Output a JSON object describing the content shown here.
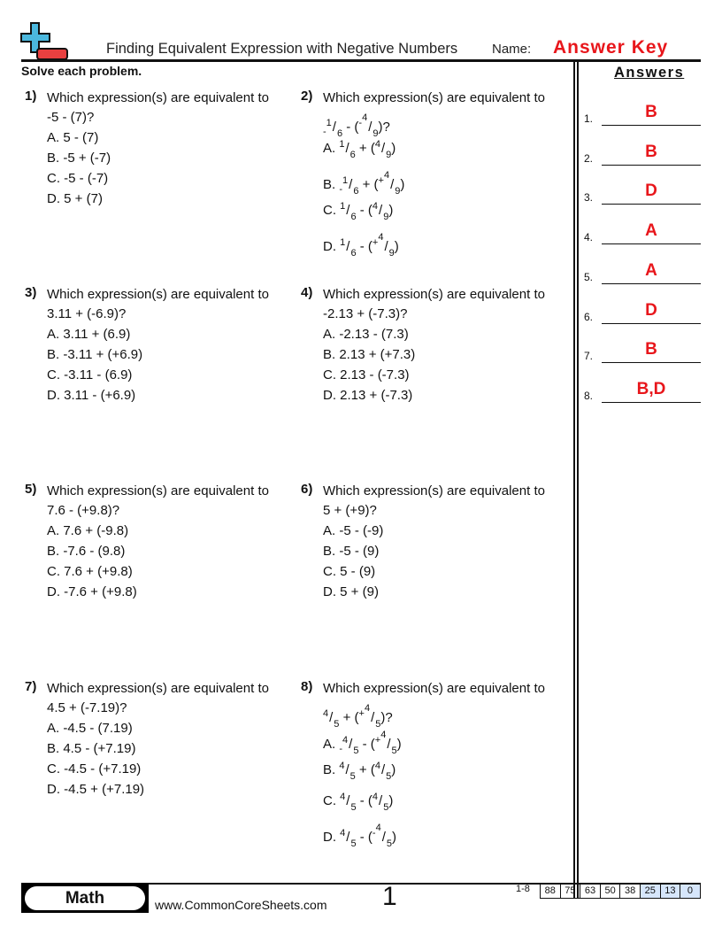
{
  "header": {
    "title": "Finding Equivalent Expression with Negative Numbers",
    "name_label": "Name:",
    "name_value": "Answer Key",
    "instructions": "Solve each problem.",
    "logo_colors": {
      "plus": "#4bb8de",
      "minus": "#e84040"
    }
  },
  "answers": {
    "title": "Answers",
    "items": [
      {
        "num": "1.",
        "value": "B"
      },
      {
        "num": "2.",
        "value": "B"
      },
      {
        "num": "3.",
        "value": "D"
      },
      {
        "num": "4.",
        "value": "A"
      },
      {
        "num": "5.",
        "value": "A"
      },
      {
        "num": "6.",
        "value": "D"
      },
      {
        "num": "7.",
        "value": "B"
      },
      {
        "num": "8.",
        "value": "B,D"
      }
    ],
    "color": "#e8161b"
  },
  "problems": [
    {
      "num": "1)",
      "prompt": "Which expression(s) are equivalent to",
      "expr": [
        {
          "t": "-5 - (7)?"
        }
      ],
      "options": [
        [
          {
            "t": "A. 5 - (7)"
          }
        ],
        [
          {
            "t": "B. -5 + (-7)"
          }
        ],
        [
          {
            "t": "C. -5 - (-7)"
          }
        ],
        [
          {
            "t": "D. 5 + (7)"
          }
        ]
      ]
    },
    {
      "num": "2)",
      "prompt": "Which expression(s) are equivalent to",
      "expr": [
        {
          "s": "-",
          "n": "1",
          "d": "6",
          "low": true
        },
        {
          "t": " - ("
        },
        {
          "s": "-",
          "n": "4",
          "d": "9"
        },
        {
          "t": ")?"
        }
      ],
      "options": [
        [
          {
            "t": "A. "
          },
          {
            "n": "1",
            "d": "6"
          },
          {
            "t": " + ("
          },
          {
            "n": "4",
            "d": "9"
          },
          {
            "t": ")"
          }
        ],
        [
          {
            "t": "B. "
          },
          {
            "s": "-",
            "n": "1",
            "d": "6",
            "low": true
          },
          {
            "t": " + ("
          },
          {
            "s": "+",
            "n": "4",
            "d": "9"
          },
          {
            "t": ")"
          }
        ],
        [
          {
            "t": "C. "
          },
          {
            "n": "1",
            "d": "6"
          },
          {
            "t": " - ("
          },
          {
            "n": "4",
            "d": "9"
          },
          {
            "t": ")"
          }
        ],
        [
          {
            "t": "D. "
          },
          {
            "n": "1",
            "d": "6"
          },
          {
            "t": " - ("
          },
          {
            "s": "+",
            "n": "4",
            "d": "9"
          },
          {
            "t": ")"
          }
        ]
      ]
    },
    {
      "num": "3)",
      "prompt": "Which expression(s) are equivalent to",
      "expr": [
        {
          "t": "3.11 + (-6.9)?"
        }
      ],
      "options": [
        [
          {
            "t": "A. 3.11 + (6.9)"
          }
        ],
        [
          {
            "t": "B. -3.11 + (+6.9)"
          }
        ],
        [
          {
            "t": "C. -3.11 - (6.9)"
          }
        ],
        [
          {
            "t": "D. 3.11 - (+6.9)"
          }
        ]
      ]
    },
    {
      "num": "4)",
      "prompt": "Which expression(s) are equivalent to",
      "expr": [
        {
          "t": "-2.13 + (-7.3)?"
        }
      ],
      "options": [
        [
          {
            "t": "A. -2.13 - (7.3)"
          }
        ],
        [
          {
            "t": "B. 2.13 + (+7.3)"
          }
        ],
        [
          {
            "t": "C. 2.13 - (-7.3)"
          }
        ],
        [
          {
            "t": "D. 2.13 + (-7.3)"
          }
        ]
      ]
    },
    {
      "num": "5)",
      "prompt": "Which expression(s) are equivalent to",
      "expr": [
        {
          "t": "7.6 - (+9.8)?"
        }
      ],
      "options": [
        [
          {
            "t": "A. 7.6 + (-9.8)"
          }
        ],
        [
          {
            "t": "B. -7.6 - (9.8)"
          }
        ],
        [
          {
            "t": "C. 7.6 + (+9.8)"
          }
        ],
        [
          {
            "t": "D. -7.6 + (+9.8)"
          }
        ]
      ]
    },
    {
      "num": "6)",
      "prompt": "Which expression(s) are equivalent to",
      "expr": [
        {
          "t": "5 + (+9)?"
        }
      ],
      "options": [
        [
          {
            "t": "A. -5 - (-9)"
          }
        ],
        [
          {
            "t": "B. -5 - (9)"
          }
        ],
        [
          {
            "t": "C. 5 - (9)"
          }
        ],
        [
          {
            "t": "D. 5 + (9)"
          }
        ]
      ]
    },
    {
      "num": "7)",
      "prompt": "Which expression(s) are equivalent to",
      "expr": [
        {
          "t": "4.5 + (-7.19)?"
        }
      ],
      "options": [
        [
          {
            "t": "A. -4.5 - (7.19)"
          }
        ],
        [
          {
            "t": "B. 4.5 - (+7.19)"
          }
        ],
        [
          {
            "t": "C. -4.5 - (+7.19)"
          }
        ],
        [
          {
            "t": "D. -4.5 + (+7.19)"
          }
        ]
      ]
    },
    {
      "num": "8)",
      "prompt": "Which expression(s) are equivalent to",
      "expr": [
        {
          "n": "4",
          "d": "5"
        },
        {
          "t": " + ("
        },
        {
          "s": "+",
          "n": "4",
          "d": "5"
        },
        {
          "t": ")?"
        }
      ],
      "options": [
        [
          {
            "t": "A. "
          },
          {
            "s": "-",
            "n": "4",
            "d": "5",
            "low": true
          },
          {
            "t": " - ("
          },
          {
            "s": "+",
            "n": "4",
            "d": "5"
          },
          {
            "t": ")"
          }
        ],
        [
          {
            "t": "B. "
          },
          {
            "n": "4",
            "d": "5"
          },
          {
            "t": " + ("
          },
          {
            "n": "4",
            "d": "5"
          },
          {
            "t": ")"
          }
        ],
        [
          {
            "t": "C. "
          },
          {
            "n": "4",
            "d": "5"
          },
          {
            "t": " - ("
          },
          {
            "n": "4",
            "d": "5"
          },
          {
            "t": ")"
          }
        ],
        [
          {
            "t": "D. "
          },
          {
            "n": "4",
            "d": "5"
          },
          {
            "t": " - ("
          },
          {
            "s": "-",
            "n": "4",
            "d": "5"
          },
          {
            "t": ")"
          }
        ]
      ]
    }
  ],
  "footer": {
    "subject": "Math",
    "site": "www.CommonCoreSheets.com",
    "page": "1",
    "range": "1-8",
    "scores": [
      "88",
      "75",
      "63",
      "50",
      "38",
      "25",
      "13",
      "0"
    ]
  }
}
